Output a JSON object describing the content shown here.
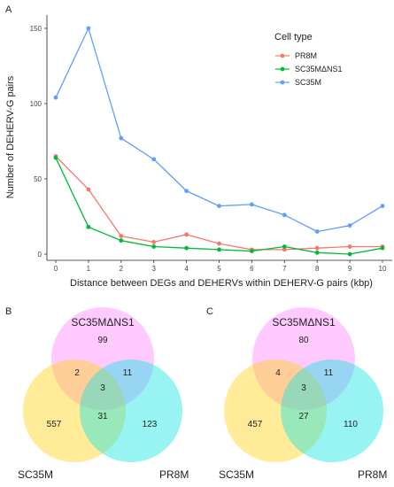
{
  "panels": {
    "a": "A",
    "b": "B",
    "c": "C"
  },
  "chart_data": [
    {
      "type": "line",
      "panel": "A",
      "title": "",
      "xlabel": "Distance between DEGs and DEHERVs within DEHERV-G pairs (kbp)",
      "ylabel": "Number of DEHERV-G pairs",
      "x": [
        0,
        1,
        2,
        3,
        4,
        5,
        6,
        7,
        8,
        9,
        10
      ],
      "xticks": [
        "0",
        "1",
        "2",
        "3",
        "4",
        "5",
        "6",
        "7",
        "8",
        "9",
        "10"
      ],
      "yticks": [
        "0",
        "50",
        "100",
        "150"
      ],
      "xlim": [
        0,
        10
      ],
      "ylim": [
        0,
        150
      ],
      "grid": false,
      "legend": {
        "title": "Cell type",
        "placement": "top-right"
      },
      "series": [
        {
          "name": "PR8M",
          "color": "#f8766d",
          "values": [
            65,
            43,
            12,
            8,
            13,
            7,
            3,
            3,
            4,
            5,
            5
          ]
        },
        {
          "name": "SC35MΔNS1",
          "color": "#00ba38",
          "values": [
            64,
            18,
            9,
            5,
            4,
            3,
            2,
            5,
            1,
            0,
            4
          ]
        },
        {
          "name": "SC35M",
          "color": "#619cff",
          "values": [
            104,
            150,
            77,
            63,
            42,
            32,
            33,
            26,
            15,
            19,
            32
          ]
        }
      ]
    },
    {
      "type": "venn",
      "panel": "B",
      "sets": [
        "SC35MΔNS1",
        "SC35M",
        "PR8M"
      ],
      "regions": {
        "only_top": "99",
        "only_left": "557",
        "only_right": "123",
        "top_left": "2",
        "top_right": "11",
        "left_right": "31",
        "all": "3"
      }
    },
    {
      "type": "venn",
      "panel": "C",
      "sets": [
        "SC35MΔNS1",
        "SC35M",
        "PR8M"
      ],
      "regions": {
        "only_top": "80",
        "only_left": "457",
        "only_right": "110",
        "top_left": "4",
        "top_right": "11",
        "left_right": "27",
        "all": "3"
      }
    }
  ],
  "colors": {
    "venn_top": "#ff66ff",
    "venn_left": "#ffd21a",
    "venn_right": "#1ae5e5"
  }
}
